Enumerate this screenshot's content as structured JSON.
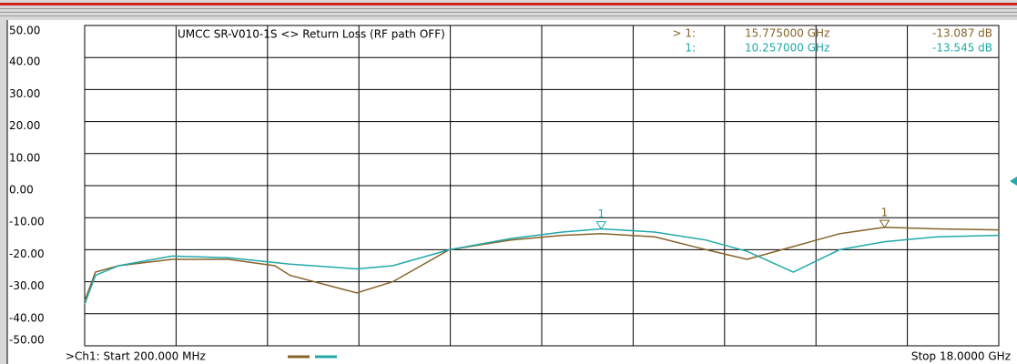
{
  "chart_data": {
    "type": "line",
    "title": "UMCC SR-V010-1S <> Return Loss (RF path OFF)",
    "start_label": ">Ch1: Start 200.000 MHz",
    "stop_label": "Stop 18.0000 GHz",
    "xlim": [
      0.2,
      18
    ],
    "ylim": [
      -50,
      50
    ],
    "yticks": [
      {
        "value": 50,
        "label": "50.00"
      },
      {
        "value": 40,
        "label": "40.00"
      },
      {
        "value": 30,
        "label": "30.00"
      },
      {
        "value": 20,
        "label": "20.00"
      },
      {
        "value": 10,
        "label": "10.00"
      },
      {
        "value": 0,
        "label": "0.00"
      },
      {
        "value": -10,
        "label": "-10.00"
      },
      {
        "value": -20,
        "label": "-20.00"
      },
      {
        "value": -30,
        "label": "-30.00"
      },
      {
        "value": -40,
        "label": "-40.00"
      },
      {
        "value": -50,
        "label": "-50.00"
      }
    ],
    "grid": true,
    "x": [
      0.2,
      0.41,
      0.86,
      1.9,
      3,
      3.9,
      4.2,
      5.5,
      6.2,
      7.3,
      8.5,
      9.5,
      10.26,
      11.3,
      12.3,
      13.1,
      14,
      14.9,
      15.775,
      16.8,
      18
    ],
    "series": [
      {
        "color": "#85632a",
        "values": [
          -36,
          -27,
          -25,
          -23,
          -23,
          -25,
          -28,
          -33.5,
          -30,
          -20,
          -17,
          -15.5,
          -15,
          -16,
          -20,
          -23,
          -19,
          -15,
          -13,
          -13.5,
          -13.8
        ]
      },
      {
        "color": "#22a8a8",
        "values": [
          -37,
          -28,
          -25,
          -22,
          -22.5,
          -24,
          -24.5,
          -26,
          -25,
          -20,
          -16.5,
          -14.5,
          -13.5,
          -14.5,
          -17,
          -20.5,
          -27,
          -20,
          -17.5,
          -16,
          -15.5
        ]
      }
    ],
    "markers": [
      {
        "name": "1",
        "prefix": "> 1:",
        "series": 0,
        "x": 15.775,
        "x_label": "15.775000 GHz",
        "value": -13.087,
        "value_label": "-13.087 dB"
      },
      {
        "name": "1",
        "prefix": "1:",
        "series": 1,
        "x": 10.257,
        "x_label": "10.257000 GHz",
        "value": -13.545,
        "value_label": "-13.545 dB"
      }
    ]
  }
}
